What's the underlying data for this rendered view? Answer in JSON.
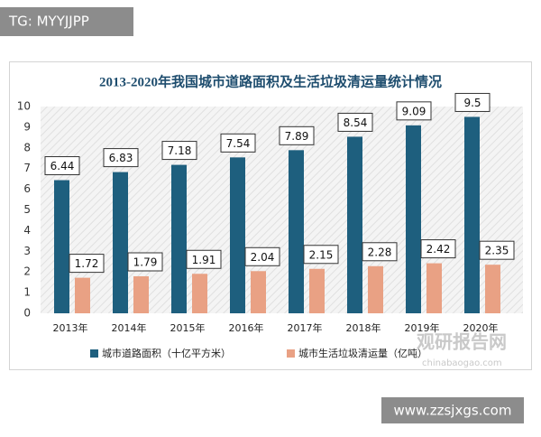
{
  "tag": "TG: MYYJJPP",
  "site": "www.zzsjxgs.com",
  "logo": {
    "name": "观研报告网",
    "url": "chinabaogao.com"
  },
  "chart_data": {
    "type": "bar",
    "title": "2013-2020年我国城市道路面积及生活垃圾清运量统计情况",
    "categories": [
      "2013年",
      "2014年",
      "2015年",
      "2016年",
      "2017年",
      "2018年",
      "2019年",
      "2020年"
    ],
    "series": [
      {
        "name": "城市道路面积（十亿平方米）",
        "color": "#1e5f7e",
        "values": [
          6.44,
          6.83,
          7.18,
          7.54,
          7.89,
          8.54,
          9.09,
          9.5
        ]
      },
      {
        "name": "城市生活垃圾清运量（亿吨）",
        "color": "#e9a184",
        "values": [
          1.72,
          1.79,
          1.91,
          2.04,
          2.15,
          2.28,
          2.42,
          2.35
        ]
      }
    ],
    "ylim": [
      0,
      10
    ],
    "yticks": [
      0,
      1,
      2,
      3,
      4,
      5,
      6,
      7,
      8,
      9,
      10
    ],
    "grid": false,
    "legend": "bottom"
  }
}
